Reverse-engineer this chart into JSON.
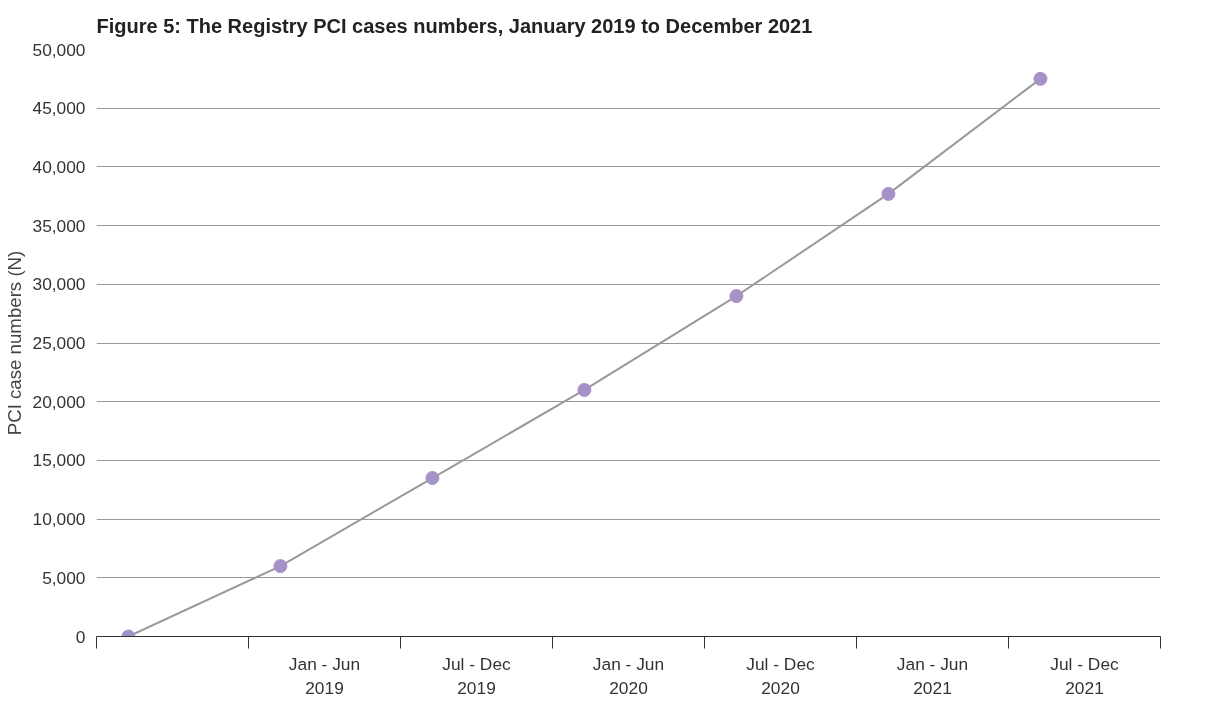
{
  "chart_data": {
    "type": "line",
    "title": "Figure 5: The Registry PCI cases numbers, January 2019 to December 2021",
    "ylabel": "PCI case numbers (N)",
    "categories": [
      null,
      "Jan - Jun\n2019",
      "Jul - Dec\n2019",
      "Jan - Jun\n2020",
      "Jul - Dec\n2020",
      "Jan - Jun\n2021",
      "Jul - Dec\n2021"
    ],
    "series": [
      {
        "color": "#999999",
        "marker": "none",
        "values": [
          0,
          6000,
          13500,
          21000,
          29000,
          37700,
          47500
        ]
      },
      {
        "type": "scatter",
        "color": "#a593c8",
        "values": [
          0,
          6000,
          13500,
          21000,
          29000,
          37700,
          47500
        ]
      }
    ],
    "marker": "circle",
    "grid": "y",
    "ylim": [
      0,
      50000
    ],
    "yticks": [
      {
        "value": 0,
        "label": "0"
      },
      {
        "value": 5000,
        "label": "5,000"
      },
      {
        "value": 10000,
        "label": "10,000"
      },
      {
        "value": 15000,
        "label": "15,000"
      },
      {
        "value": 20000,
        "label": "20,000"
      },
      {
        "value": 25000,
        "label": "25,000"
      },
      {
        "value": 30000,
        "label": "30,000"
      },
      {
        "value": 35000,
        "label": "35,000"
      },
      {
        "value": 40000,
        "label": "40,000"
      },
      {
        "value": 45000,
        "label": "45,000"
      },
      {
        "value": 50000,
        "label": "50,000"
      }
    ]
  }
}
